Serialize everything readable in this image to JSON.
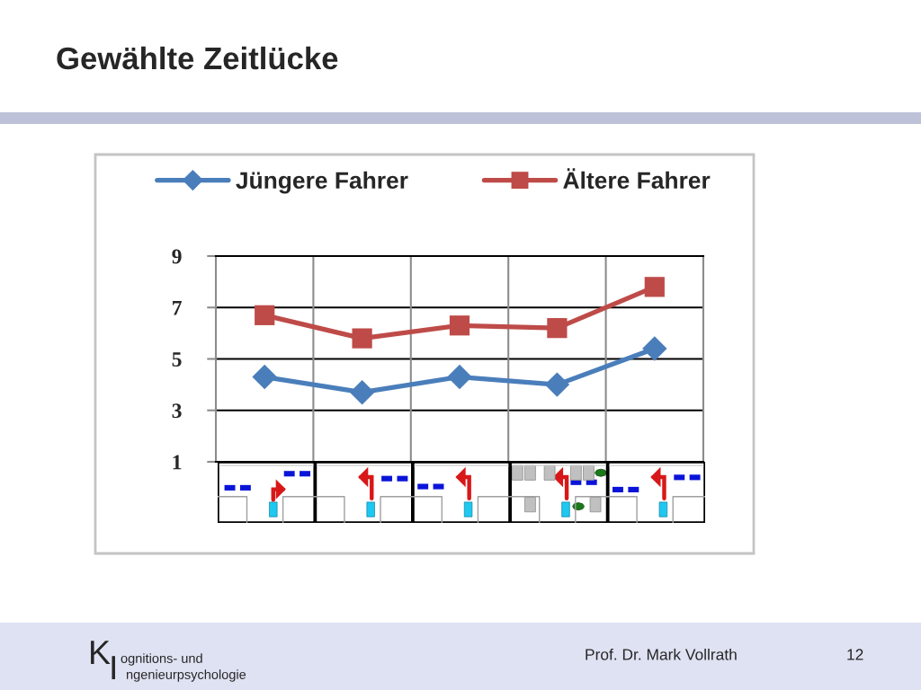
{
  "chart_data": {
    "type": "line",
    "title": "Gewählte Zeitlücke",
    "categories": [
      null,
      null,
      null,
      null,
      null
    ],
    "series": [
      {
        "name": "Jüngere Fahrer",
        "color": "#4a7ebb",
        "marker": "diamond",
        "values": [
          4.3,
          3.7,
          4.3,
          4.0,
          5.4
        ]
      },
      {
        "name": "Ältere Fahrer",
        "color": "#be4b48",
        "marker": "square",
        "values": [
          6.7,
          5.8,
          6.3,
          6.2,
          7.8
        ]
      }
    ],
    "ylim": [
      1,
      9
    ],
    "yticks": [
      1,
      3,
      5,
      7,
      9
    ],
    "grid": true,
    "legend": "top",
    "line_style": "solid",
    "annotations": [
      "K",
      "ognitions- und",
      "I",
      "ngenieurpsychologie",
      "Prof. Dr. Mark Vollrath",
      "12"
    ]
  }
}
